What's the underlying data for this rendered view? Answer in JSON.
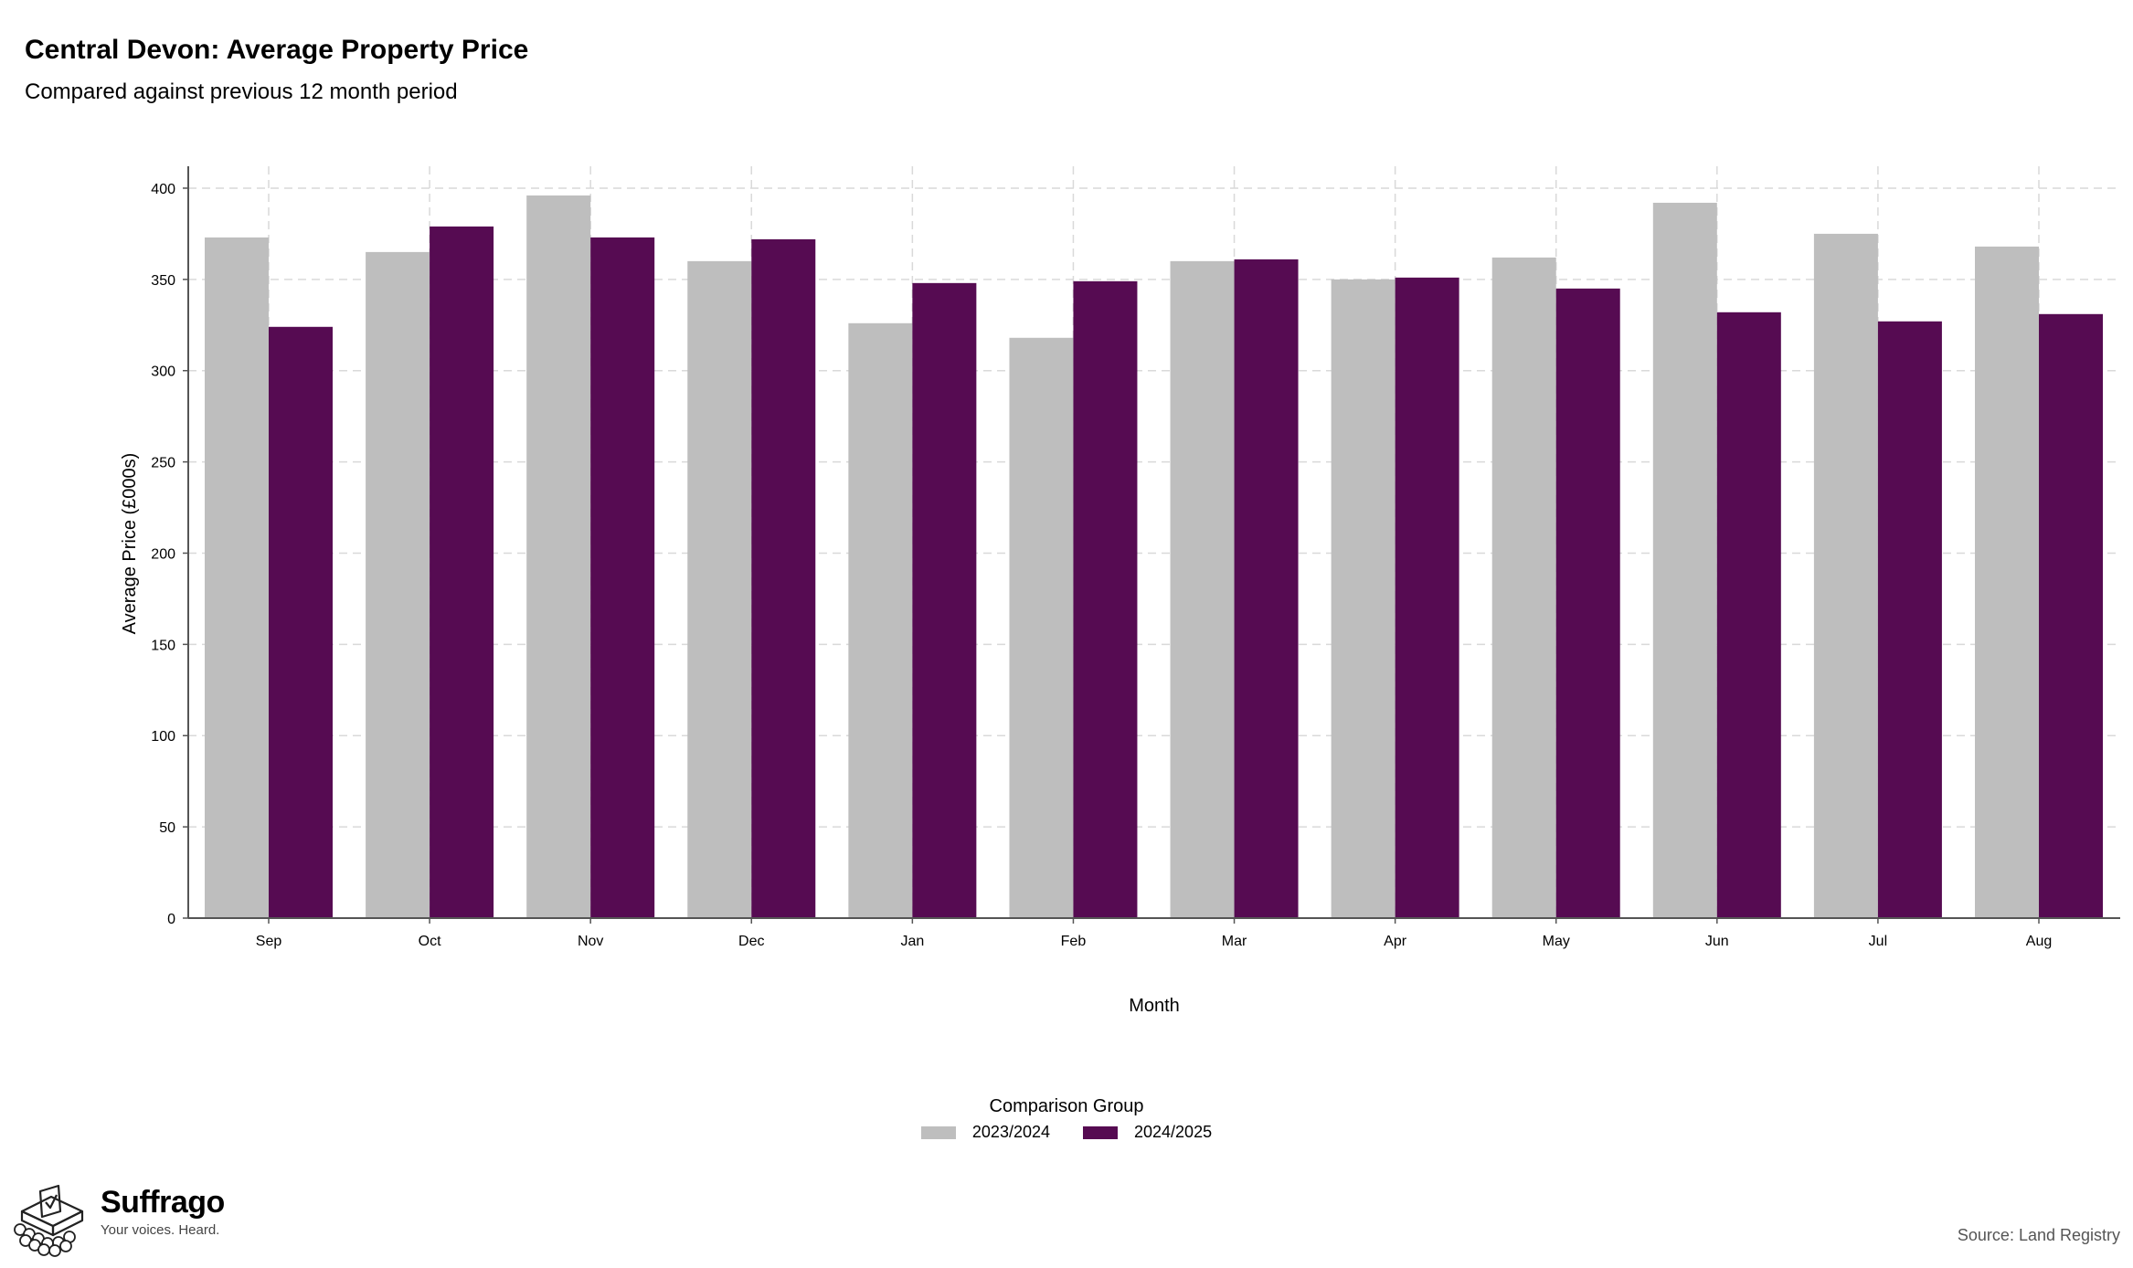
{
  "header": {
    "title": "Central Devon: Average Property Price",
    "subtitle": "Compared against previous 12 month period"
  },
  "chart_data": {
    "type": "bar",
    "categories": [
      "Sep",
      "Oct",
      "Nov",
      "Dec",
      "Jan",
      "Feb",
      "Mar",
      "Apr",
      "May",
      "Jun",
      "Jul",
      "Aug"
    ],
    "series": [
      {
        "name": "2023/2024",
        "color": "#bebebe",
        "values": [
          373,
          365,
          396,
          360,
          326,
          318,
          360,
          350,
          362,
          392,
          375,
          368
        ]
      },
      {
        "name": "2024/2025",
        "color": "#560b52",
        "values": [
          324,
          379,
          373,
          372,
          348,
          349,
          361,
          351,
          345,
          332,
          327,
          331
        ]
      }
    ],
    "xlabel": "Month",
    "ylabel": "Average Price (£000s)",
    "ylim": [
      0,
      412
    ],
    "yticks": [
      0,
      50,
      100,
      150,
      200,
      250,
      300,
      350,
      400
    ],
    "grid": true,
    "legend_title": "Comparison Group",
    "legend_position": "bottom"
  },
  "footer": {
    "brand_name": "Suffrago",
    "brand_tagline": "Your voices. Heard.",
    "source": "Source: Land Registry"
  }
}
